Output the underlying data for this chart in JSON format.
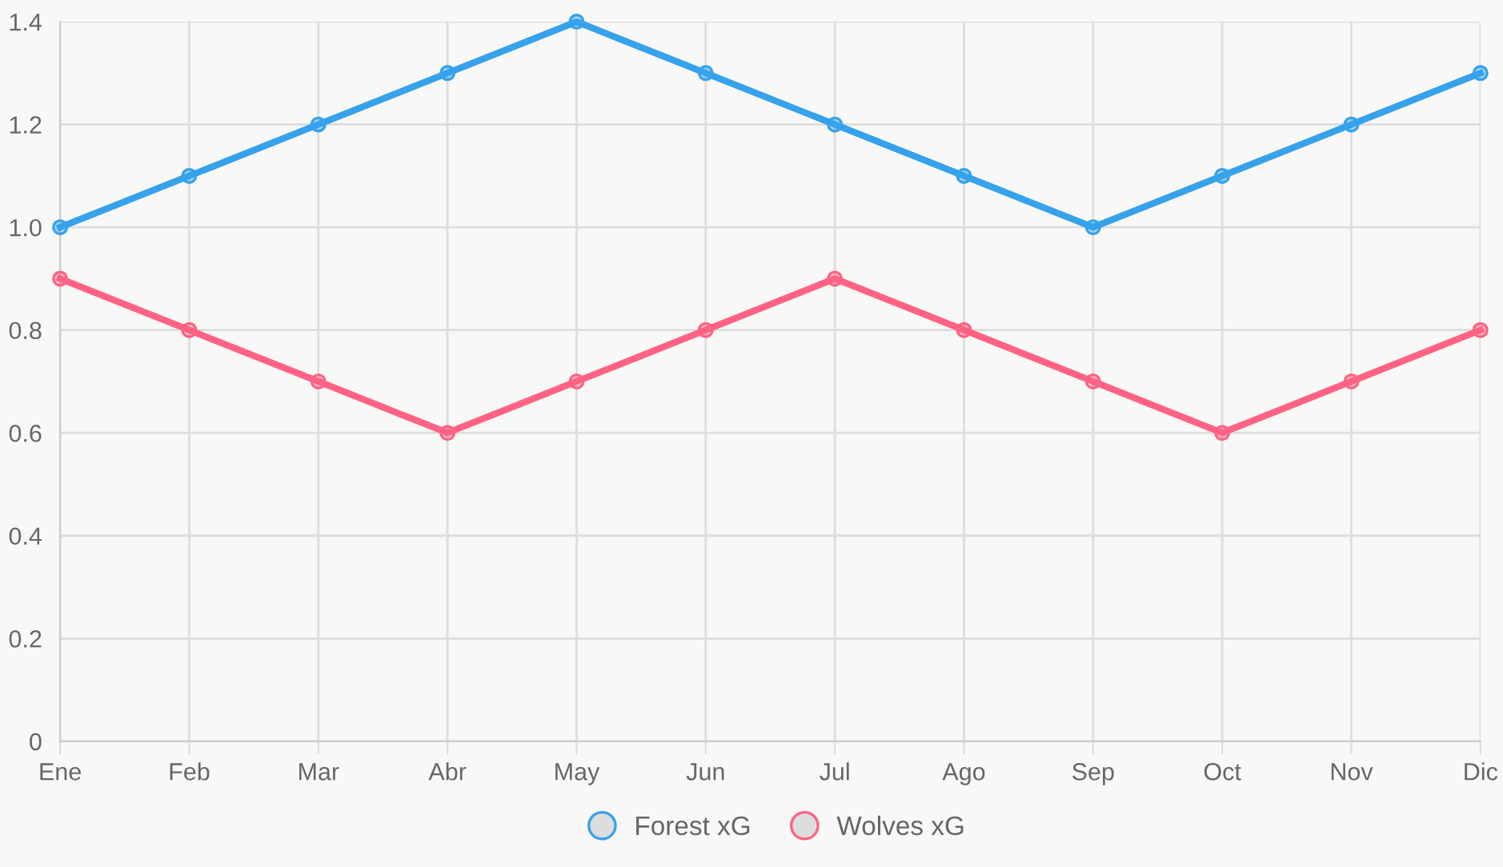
{
  "chart_data": {
    "type": "line",
    "categories": [
      "Ene",
      "Feb",
      "Mar",
      "Abr",
      "May",
      "Jun",
      "Jul",
      "Ago",
      "Sep",
      "Oct",
      "Nov",
      "Dic"
    ],
    "series": [
      {
        "name": "Forest xG",
        "color": "#36a2eb",
        "values": [
          1.0,
          1.1,
          1.2,
          1.3,
          1.4,
          1.3,
          1.2,
          1.1,
          1.0,
          1.1,
          1.2,
          1.3
        ]
      },
      {
        "name": "Wolves xG",
        "color": "#ff6384",
        "values": [
          0.9,
          0.8,
          0.7,
          0.6,
          0.7,
          0.8,
          0.9,
          0.8,
          0.7,
          0.6,
          0.7,
          0.8
        ]
      }
    ],
    "ylim": [
      0,
      1.4
    ],
    "yticks": [
      0,
      {
        "value": 0.2,
        "label": "0.2"
      },
      {
        "value": 0.4,
        "label": "0.4"
      },
      {
        "value": 0.6,
        "label": "0.6"
      },
      {
        "value": 0.8,
        "label": "0.8"
      },
      {
        "value": 1.0,
        "label": "1.0"
      },
      {
        "value": 1.2,
        "label": "1.2"
      },
      {
        "value": 1.4,
        "label": "1.4"
      }
    ],
    "grid": true,
    "legend": "bottom",
    "marker": "circle",
    "line_style": "solid"
  }
}
